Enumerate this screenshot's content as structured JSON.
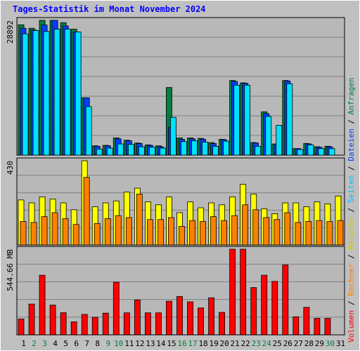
{
  "title": "Tages-Statistik im Monat November 2024",
  "colors": {
    "background": "#c0c0c0",
    "plot_background": "#b8b8b8",
    "gridline": "#808080",
    "border": "#000000",
    "title": "#0000ff",
    "hits": "#008040",
    "files": "#0040ff",
    "pages": "#00e0ff",
    "visits": "#ffff00",
    "sites": "#ff8000",
    "volume": "#ff0000",
    "weekend_label": "#008040",
    "weekday_label": "#000000"
  },
  "right_legend": {
    "parts": [
      {
        "text": "Volumen",
        "color": "#ff0000"
      },
      {
        "text": "Rechner",
        "color": "#ff8000"
      },
      {
        "text": "Besuche",
        "color": "#cccc00"
      },
      {
        "text": "Seiten",
        "color": "#00c0ff"
      },
      {
        "text": "Dateien",
        "color": "#0040ff"
      },
      {
        "text": "Anfragen",
        "color": "#008040"
      }
    ],
    "separator": " / "
  },
  "chart_data": [
    {
      "type": "bar",
      "panel": "requests",
      "ylabel_max": "28892",
      "ymax": 28892,
      "categories": [
        "1",
        "2",
        "3",
        "4",
        "5",
        "6",
        "7",
        "8",
        "9",
        "10",
        "11",
        "12",
        "13",
        "14",
        "15",
        "16",
        "17",
        "18",
        "19",
        "20",
        "21",
        "22",
        "23",
        "24",
        "25",
        "26",
        "27",
        "28",
        "29",
        "30",
        "31"
      ],
      "weekend": [
        2,
        3,
        9,
        10,
        16,
        17,
        23,
        24,
        30
      ],
      "series": [
        {
          "name": "Anfragen",
          "color": "#008040",
          "values": [
            27950,
            27200,
            28892,
            28892,
            28400,
            27000,
            12300,
            2000,
            2100,
            3700,
            3200,
            2600,
            2200,
            2000,
            14500,
            3700,
            3700,
            3600,
            2700,
            3400,
            16000,
            15500,
            2700,
            9300,
            2400,
            16000,
            1400,
            2500,
            1800,
            1900,
            0
          ]
        },
        {
          "name": "Dateien",
          "color": "#0040ff",
          "values": [
            27200,
            26800,
            27900,
            28892,
            27700,
            26400,
            12300,
            1900,
            2000,
            3500,
            3100,
            2500,
            2100,
            1800,
            6000,
            3400,
            3500,
            3400,
            2500,
            3300,
            15800,
            15400,
            2600,
            8900,
            2300,
            15900,
            1400,
            2400,
            1700,
            1800,
            0
          ]
        },
        {
          "name": "Seiten",
          "color": "#00e0ff",
          "values": [
            26000,
            26700,
            26500,
            27000,
            27000,
            26400,
            10400,
            1300,
            1500,
            2400,
            2300,
            1800,
            1700,
            1500,
            8100,
            2900,
            3100,
            2800,
            1900,
            3000,
            15000,
            15000,
            1900,
            8300,
            6400,
            15300,
            1200,
            2200,
            1400,
            1400,
            0
          ]
        }
      ]
    },
    {
      "type": "bar",
      "panel": "visits",
      "ylabel_max": "430",
      "ymax": 430,
      "categories": [
        "1",
        "2",
        "3",
        "4",
        "5",
        "6",
        "7",
        "8",
        "9",
        "10",
        "11",
        "12",
        "13",
        "14",
        "15",
        "16",
        "17",
        "18",
        "19",
        "20",
        "21",
        "22",
        "23",
        "24",
        "25",
        "26",
        "27",
        "28",
        "29",
        "30",
        "31"
      ],
      "series": [
        {
          "name": "Besuche",
          "color": "#ffff00",
          "values": [
            230,
            215,
            245,
            235,
            215,
            180,
            430,
            195,
            215,
            225,
            270,
            290,
            220,
            205,
            245,
            165,
            220,
            190,
            215,
            205,
            245,
            310,
            260,
            185,
            160,
            215,
            215,
            195,
            220,
            210,
            250
          ]
        },
        {
          "name": "Rechner",
          "color": "#ff8000",
          "values": [
            120,
            115,
            145,
            165,
            135,
            105,
            345,
            110,
            135,
            150,
            140,
            260,
            130,
            130,
            140,
            95,
            125,
            120,
            145,
            125,
            150,
            205,
            180,
            140,
            130,
            165,
            115,
            120,
            125,
            120,
            125
          ]
        }
      ]
    },
    {
      "type": "bar",
      "panel": "volume",
      "ylabel_max": "544.66 MB",
      "ymax": 544.66,
      "categories": [
        "1",
        "2",
        "3",
        "4",
        "5",
        "6",
        "7",
        "8",
        "9",
        "10",
        "11",
        "12",
        "13",
        "14",
        "15",
        "16",
        "17",
        "18",
        "19",
        "20",
        "21",
        "22",
        "23",
        "24",
        "25",
        "26",
        "27",
        "28",
        "29",
        "30",
        "31"
      ],
      "series": [
        {
          "name": "Volumen",
          "color": "#ff0000",
          "values": [
            101,
            196,
            379,
            189,
            141,
            83,
            130,
            112,
            138,
            335,
            140,
            222,
            140,
            140,
            214,
            244,
            210,
            171,
            236,
            143,
            544.66,
            544.66,
            301,
            379,
            340,
            445,
            115,
            175,
            105,
            105,
            0
          ]
        }
      ]
    }
  ]
}
